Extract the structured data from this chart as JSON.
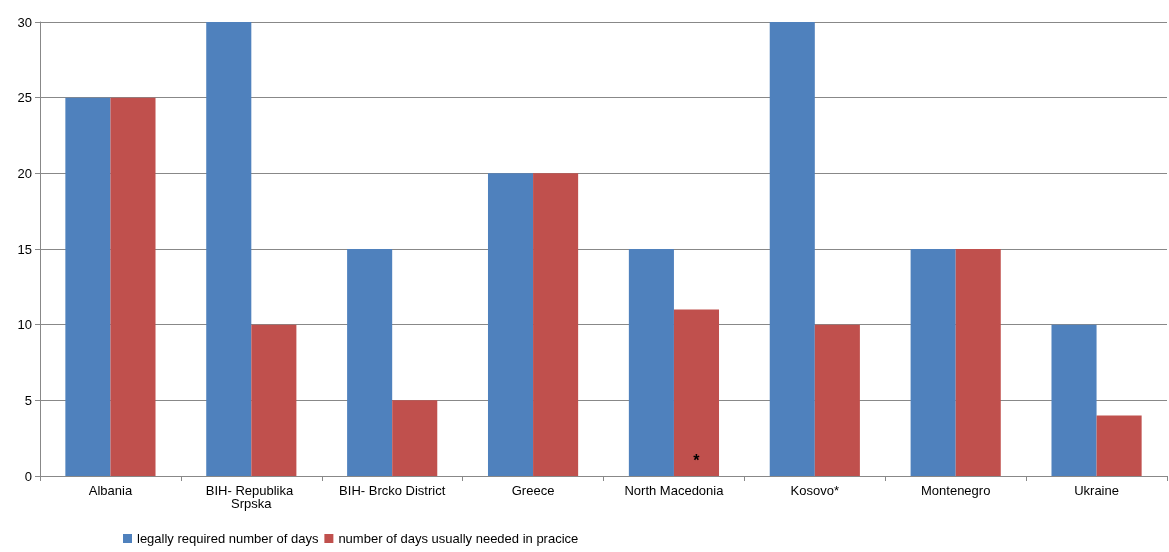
{
  "chart_data": {
    "type": "bar",
    "categories": [
      "Albania",
      "BIH- Republika Srpska",
      "BIH- Brcko District",
      "Greece",
      "North Macedonia",
      "Kosovo*",
      "Montenegro",
      "Ukraine"
    ],
    "series": [
      {
        "name": "legally required number of days",
        "color": "#4f81bd",
        "values": [
          25,
          30,
          15,
          20,
          15,
          30,
          15,
          10
        ]
      },
      {
        "name": "number of days usually needed in pracice",
        "color": "#c0504d",
        "values": [
          25,
          10,
          5,
          20,
          11,
          10,
          15,
          4
        ]
      }
    ],
    "ylim": [
      0,
      30
    ],
    "yticks": [
      0,
      5,
      10,
      15,
      20,
      25,
      30
    ],
    "grid": "y",
    "legend": "bottom left",
    "annotations": [
      {
        "text": "*",
        "x": "North Macedonia",
        "y": 1
      }
    ]
  }
}
